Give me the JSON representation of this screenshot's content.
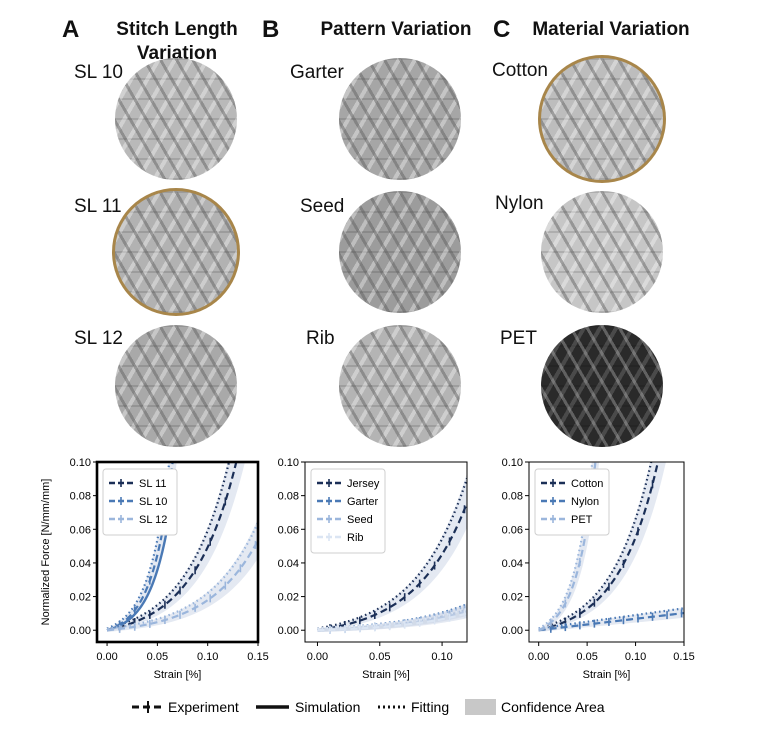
{
  "panels": [
    {
      "letter": "A",
      "title_line1": "Stitch Length",
      "title_line2": "Variation",
      "samples": [
        "SL 10",
        "SL 11",
        "SL 12"
      ],
      "highlight": 1
    },
    {
      "letter": "B",
      "title_line1": "Pattern Variation",
      "title_line2": "",
      "samples": [
        "Garter",
        "Seed",
        "Rib"
      ],
      "highlight": -1
    },
    {
      "letter": "C",
      "title_line1": "Material Variation",
      "title_line2": "",
      "samples": [
        "Cotton",
        "Nylon",
        "PET"
      ],
      "highlight": 0
    }
  ],
  "legend_bottom": {
    "experiment": "Experiment",
    "simulation": "Simulation",
    "fitting": "Fitting",
    "confidence": "Confidence Area"
  },
  "colors": {
    "dark": "#1b2f57",
    "mid": "#4a79b5",
    "light": "#9bb6dc",
    "faint": "#dbe5f3",
    "band": "#cdd7e8",
    "gold": "#a8864a"
  },
  "chart_data": [
    {
      "type": "line",
      "title": "",
      "xlabel": "Strain [%]",
      "ylabel": "Normalized Force [N/mm/mm]",
      "xlim": [
        -0.01,
        0.15
      ],
      "ylim": [
        -0.007,
        0.1
      ],
      "xticks": [
        "0.00",
        "0.05",
        "0.10",
        "0.15"
      ],
      "yticks": [
        "0.00",
        "0.02",
        "0.04",
        "0.06",
        "0.08",
        "0.10"
      ],
      "series": [
        {
          "name": "SL 11",
          "color": "dark",
          "k": 0.0055,
          "b": 23,
          "sim": false
        },
        {
          "name": "SL 10",
          "color": "mid",
          "k": 0.004,
          "b": 50,
          "sim": true
        },
        {
          "name": "SL 12",
          "color": "light",
          "k": 0.0028,
          "b": 20,
          "sim": false
        }
      ]
    },
    {
      "type": "line",
      "title": "",
      "xlabel": "Strain [%]",
      "ylabel": "",
      "xlim": [
        -0.01,
        0.12
      ],
      "ylim": [
        -0.007,
        0.1
      ],
      "xticks": [
        "0.00",
        "0.05",
        "0.10"
      ],
      "yticks": [
        "0.00",
        "0.02",
        "0.04",
        "0.06",
        "0.08",
        "0.10"
      ],
      "series": [
        {
          "name": "Jersey",
          "color": "dark",
          "k": 0.0045,
          "b": 24,
          "sim": false
        },
        {
          "name": "Garter",
          "color": "mid",
          "k": 0.0016,
          "b": 18,
          "sim": false
        },
        {
          "name": "Seed",
          "color": "light",
          "k": 0.0015,
          "b": 18,
          "sim": false
        },
        {
          "name": "Rib",
          "color": "faint",
          "k": 0.0013,
          "b": 18,
          "sim": false
        }
      ]
    },
    {
      "type": "line",
      "title": "",
      "xlabel": "Strain [%]",
      "ylabel": "",
      "xlim": [
        -0.01,
        0.15
      ],
      "ylim": [
        -0.007,
        0.1
      ],
      "xticks": [
        "0.00",
        "0.05",
        "0.10",
        "0.15"
      ],
      "yticks": [
        "0.00",
        "0.02",
        "0.04",
        "0.06",
        "0.08",
        "0.10"
      ],
      "series": [
        {
          "name": "Cotton",
          "color": "dark",
          "k": 0.0055,
          "b": 24,
          "sim": false
        },
        {
          "name": "Nylon",
          "color": "mid",
          "linear": 0.068,
          "sim": false
        },
        {
          "name": "PET",
          "color": "light",
          "k": 0.005,
          "b": 52,
          "sim": false
        }
      ]
    }
  ]
}
